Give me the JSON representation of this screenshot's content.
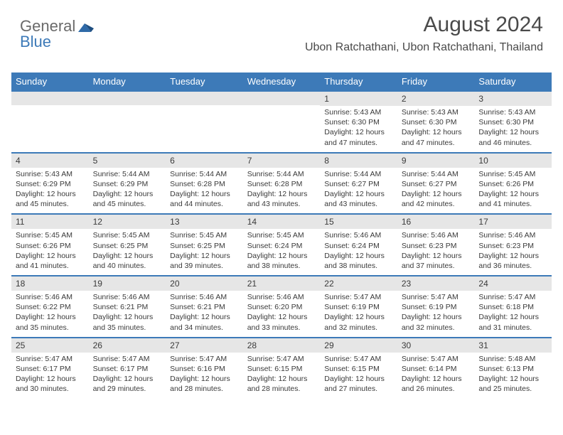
{
  "logo": {
    "general": "General",
    "blue": "Blue"
  },
  "title": "August 2024",
  "location": "Ubon Ratchathani, Ubon Ratchathani, Thailand",
  "dayNames": [
    "Sunday",
    "Monday",
    "Tuesday",
    "Wednesday",
    "Thursday",
    "Friday",
    "Saturday"
  ],
  "colors": {
    "accent": "#3d7ab8",
    "grayBand": "#e6e6e6",
    "text": "#3a3a3a"
  },
  "weeks": [
    [
      {
        "n": "",
        "sr": "",
        "ss": "",
        "dl": ""
      },
      {
        "n": "",
        "sr": "",
        "ss": "",
        "dl": ""
      },
      {
        "n": "",
        "sr": "",
        "ss": "",
        "dl": ""
      },
      {
        "n": "",
        "sr": "",
        "ss": "",
        "dl": ""
      },
      {
        "n": "1",
        "sr": "Sunrise: 5:43 AM",
        "ss": "Sunset: 6:30 PM",
        "dl": "Daylight: 12 hours and 47 minutes."
      },
      {
        "n": "2",
        "sr": "Sunrise: 5:43 AM",
        "ss": "Sunset: 6:30 PM",
        "dl": "Daylight: 12 hours and 47 minutes."
      },
      {
        "n": "3",
        "sr": "Sunrise: 5:43 AM",
        "ss": "Sunset: 6:30 PM",
        "dl": "Daylight: 12 hours and 46 minutes."
      }
    ],
    [
      {
        "n": "4",
        "sr": "Sunrise: 5:43 AM",
        "ss": "Sunset: 6:29 PM",
        "dl": "Daylight: 12 hours and 45 minutes."
      },
      {
        "n": "5",
        "sr": "Sunrise: 5:44 AM",
        "ss": "Sunset: 6:29 PM",
        "dl": "Daylight: 12 hours and 45 minutes."
      },
      {
        "n": "6",
        "sr": "Sunrise: 5:44 AM",
        "ss": "Sunset: 6:28 PM",
        "dl": "Daylight: 12 hours and 44 minutes."
      },
      {
        "n": "7",
        "sr": "Sunrise: 5:44 AM",
        "ss": "Sunset: 6:28 PM",
        "dl": "Daylight: 12 hours and 43 minutes."
      },
      {
        "n": "8",
        "sr": "Sunrise: 5:44 AM",
        "ss": "Sunset: 6:27 PM",
        "dl": "Daylight: 12 hours and 43 minutes."
      },
      {
        "n": "9",
        "sr": "Sunrise: 5:44 AM",
        "ss": "Sunset: 6:27 PM",
        "dl": "Daylight: 12 hours and 42 minutes."
      },
      {
        "n": "10",
        "sr": "Sunrise: 5:45 AM",
        "ss": "Sunset: 6:26 PM",
        "dl": "Daylight: 12 hours and 41 minutes."
      }
    ],
    [
      {
        "n": "11",
        "sr": "Sunrise: 5:45 AM",
        "ss": "Sunset: 6:26 PM",
        "dl": "Daylight: 12 hours and 41 minutes."
      },
      {
        "n": "12",
        "sr": "Sunrise: 5:45 AM",
        "ss": "Sunset: 6:25 PM",
        "dl": "Daylight: 12 hours and 40 minutes."
      },
      {
        "n": "13",
        "sr": "Sunrise: 5:45 AM",
        "ss": "Sunset: 6:25 PM",
        "dl": "Daylight: 12 hours and 39 minutes."
      },
      {
        "n": "14",
        "sr": "Sunrise: 5:45 AM",
        "ss": "Sunset: 6:24 PM",
        "dl": "Daylight: 12 hours and 38 minutes."
      },
      {
        "n": "15",
        "sr": "Sunrise: 5:46 AM",
        "ss": "Sunset: 6:24 PM",
        "dl": "Daylight: 12 hours and 38 minutes."
      },
      {
        "n": "16",
        "sr": "Sunrise: 5:46 AM",
        "ss": "Sunset: 6:23 PM",
        "dl": "Daylight: 12 hours and 37 minutes."
      },
      {
        "n": "17",
        "sr": "Sunrise: 5:46 AM",
        "ss": "Sunset: 6:23 PM",
        "dl": "Daylight: 12 hours and 36 minutes."
      }
    ],
    [
      {
        "n": "18",
        "sr": "Sunrise: 5:46 AM",
        "ss": "Sunset: 6:22 PM",
        "dl": "Daylight: 12 hours and 35 minutes."
      },
      {
        "n": "19",
        "sr": "Sunrise: 5:46 AM",
        "ss": "Sunset: 6:21 PM",
        "dl": "Daylight: 12 hours and 35 minutes."
      },
      {
        "n": "20",
        "sr": "Sunrise: 5:46 AM",
        "ss": "Sunset: 6:21 PM",
        "dl": "Daylight: 12 hours and 34 minutes."
      },
      {
        "n": "21",
        "sr": "Sunrise: 5:46 AM",
        "ss": "Sunset: 6:20 PM",
        "dl": "Daylight: 12 hours and 33 minutes."
      },
      {
        "n": "22",
        "sr": "Sunrise: 5:47 AM",
        "ss": "Sunset: 6:19 PM",
        "dl": "Daylight: 12 hours and 32 minutes."
      },
      {
        "n": "23",
        "sr": "Sunrise: 5:47 AM",
        "ss": "Sunset: 6:19 PM",
        "dl": "Daylight: 12 hours and 32 minutes."
      },
      {
        "n": "24",
        "sr": "Sunrise: 5:47 AM",
        "ss": "Sunset: 6:18 PM",
        "dl": "Daylight: 12 hours and 31 minutes."
      }
    ],
    [
      {
        "n": "25",
        "sr": "Sunrise: 5:47 AM",
        "ss": "Sunset: 6:17 PM",
        "dl": "Daylight: 12 hours and 30 minutes."
      },
      {
        "n": "26",
        "sr": "Sunrise: 5:47 AM",
        "ss": "Sunset: 6:17 PM",
        "dl": "Daylight: 12 hours and 29 minutes."
      },
      {
        "n": "27",
        "sr": "Sunrise: 5:47 AM",
        "ss": "Sunset: 6:16 PM",
        "dl": "Daylight: 12 hours and 28 minutes."
      },
      {
        "n": "28",
        "sr": "Sunrise: 5:47 AM",
        "ss": "Sunset: 6:15 PM",
        "dl": "Daylight: 12 hours and 28 minutes."
      },
      {
        "n": "29",
        "sr": "Sunrise: 5:47 AM",
        "ss": "Sunset: 6:15 PM",
        "dl": "Daylight: 12 hours and 27 minutes."
      },
      {
        "n": "30",
        "sr": "Sunrise: 5:47 AM",
        "ss": "Sunset: 6:14 PM",
        "dl": "Daylight: 12 hours and 26 minutes."
      },
      {
        "n": "31",
        "sr": "Sunrise: 5:48 AM",
        "ss": "Sunset: 6:13 PM",
        "dl": "Daylight: 12 hours and 25 minutes."
      }
    ]
  ]
}
